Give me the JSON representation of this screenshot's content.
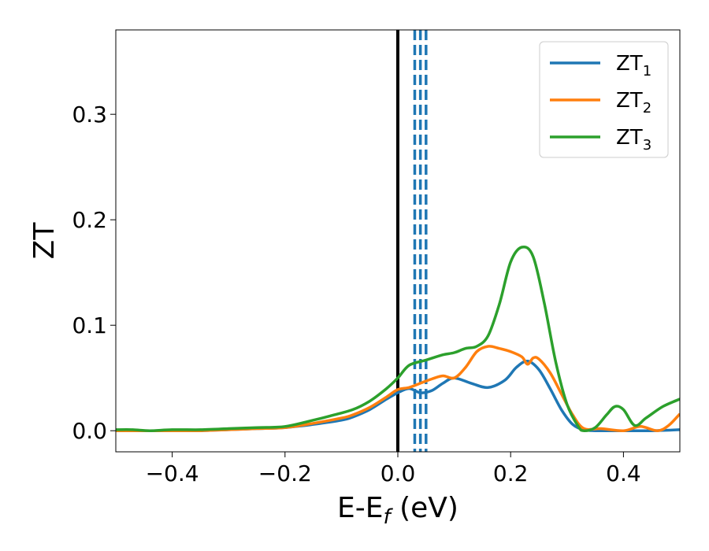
{
  "chart_data": {
    "type": "line",
    "title": "",
    "xlabel": {
      "main": "E-E",
      "sub": "f",
      "suffix": " (eV)"
    },
    "ylabel": "ZT",
    "xlim": [
      -0.5,
      0.5
    ],
    "ylim": [
      -0.02,
      0.38
    ],
    "xticks": [
      -0.4,
      -0.2,
      0.0,
      0.2,
      0.4
    ],
    "xtick_labels": [
      "−0.4",
      "−0.2",
      "0.0",
      "0.2",
      "0.4"
    ],
    "yticks": [
      0.0,
      0.1,
      0.2,
      0.3
    ],
    "ytick_labels": [
      "0.0",
      "0.1",
      "0.2",
      "0.3"
    ],
    "grid": false,
    "legend_position": "top-right",
    "vertical_lines": [
      {
        "x": 0.0,
        "style": "solid",
        "color": "#000000"
      },
      {
        "x": 0.03,
        "style": "dashed",
        "color": "#1f77b4"
      },
      {
        "x": 0.04,
        "style": "dashed",
        "color": "#1f77b4"
      },
      {
        "x": 0.05,
        "style": "dashed",
        "color": "#1f77b4"
      }
    ],
    "series": [
      {
        "name": "ZT",
        "sub": "1",
        "color": "#1f77b4",
        "x": [
          -0.5,
          -0.45,
          -0.4,
          -0.35,
          -0.3,
          -0.25,
          -0.2,
          -0.15,
          -0.1,
          -0.08,
          -0.05,
          -0.02,
          0.0,
          0.02,
          0.04,
          0.06,
          0.08,
          0.1,
          0.13,
          0.16,
          0.19,
          0.21,
          0.23,
          0.25,
          0.27,
          0.29,
          0.31,
          0.33,
          0.35,
          0.4,
          0.45,
          0.5
        ],
        "y": [
          0.0,
          0.0,
          0.0,
          0.0,
          0.001,
          0.002,
          0.003,
          0.006,
          0.01,
          0.013,
          0.02,
          0.03,
          0.036,
          0.04,
          0.036,
          0.038,
          0.045,
          0.05,
          0.045,
          0.041,
          0.048,
          0.06,
          0.066,
          0.058,
          0.04,
          0.02,
          0.006,
          0.001,
          0.0,
          0.0,
          0.0,
          0.001
        ]
      },
      {
        "name": "ZT",
        "sub": "2",
        "color": "#ff7f0e",
        "x": [
          -0.5,
          -0.45,
          -0.4,
          -0.35,
          -0.3,
          -0.25,
          -0.2,
          -0.15,
          -0.1,
          -0.08,
          -0.05,
          -0.02,
          0.0,
          0.02,
          0.04,
          0.06,
          0.08,
          0.1,
          0.12,
          0.14,
          0.16,
          0.18,
          0.2,
          0.22,
          0.23,
          0.24,
          0.25,
          0.27,
          0.29,
          0.31,
          0.33,
          0.36,
          0.4,
          0.43,
          0.46,
          0.48,
          0.5
        ],
        "y": [
          0.0,
          0.0,
          0.0,
          0.0,
          0.001,
          0.002,
          0.003,
          0.007,
          0.012,
          0.015,
          0.022,
          0.032,
          0.039,
          0.041,
          0.045,
          0.049,
          0.052,
          0.05,
          0.06,
          0.075,
          0.08,
          0.078,
          0.075,
          0.07,
          0.063,
          0.069,
          0.068,
          0.055,
          0.035,
          0.015,
          0.002,
          0.002,
          0.0,
          0.004,
          0.0,
          0.005,
          0.016
        ]
      },
      {
        "name": "ZT",
        "sub": "3",
        "color": "#2ca02c",
        "x": [
          -0.5,
          -0.47,
          -0.44,
          -0.4,
          -0.35,
          -0.3,
          -0.25,
          -0.2,
          -0.15,
          -0.12,
          -0.08,
          -0.05,
          -0.02,
          0.0,
          0.02,
          0.05,
          0.08,
          0.1,
          0.12,
          0.14,
          0.16,
          0.18,
          0.2,
          0.22,
          0.24,
          0.26,
          0.28,
          0.3,
          0.32,
          0.33,
          0.35,
          0.37,
          0.385,
          0.4,
          0.42,
          0.44,
          0.47,
          0.5
        ],
        "y": [
          0.001,
          0.001,
          0.0,
          0.001,
          0.001,
          0.002,
          0.003,
          0.004,
          0.01,
          0.014,
          0.02,
          0.028,
          0.04,
          0.05,
          0.062,
          0.067,
          0.072,
          0.074,
          0.078,
          0.08,
          0.09,
          0.12,
          0.16,
          0.174,
          0.165,
          0.12,
          0.065,
          0.025,
          0.004,
          0.0,
          0.003,
          0.015,
          0.023,
          0.02,
          0.005,
          0.012,
          0.023,
          0.03
        ]
      }
    ]
  }
}
